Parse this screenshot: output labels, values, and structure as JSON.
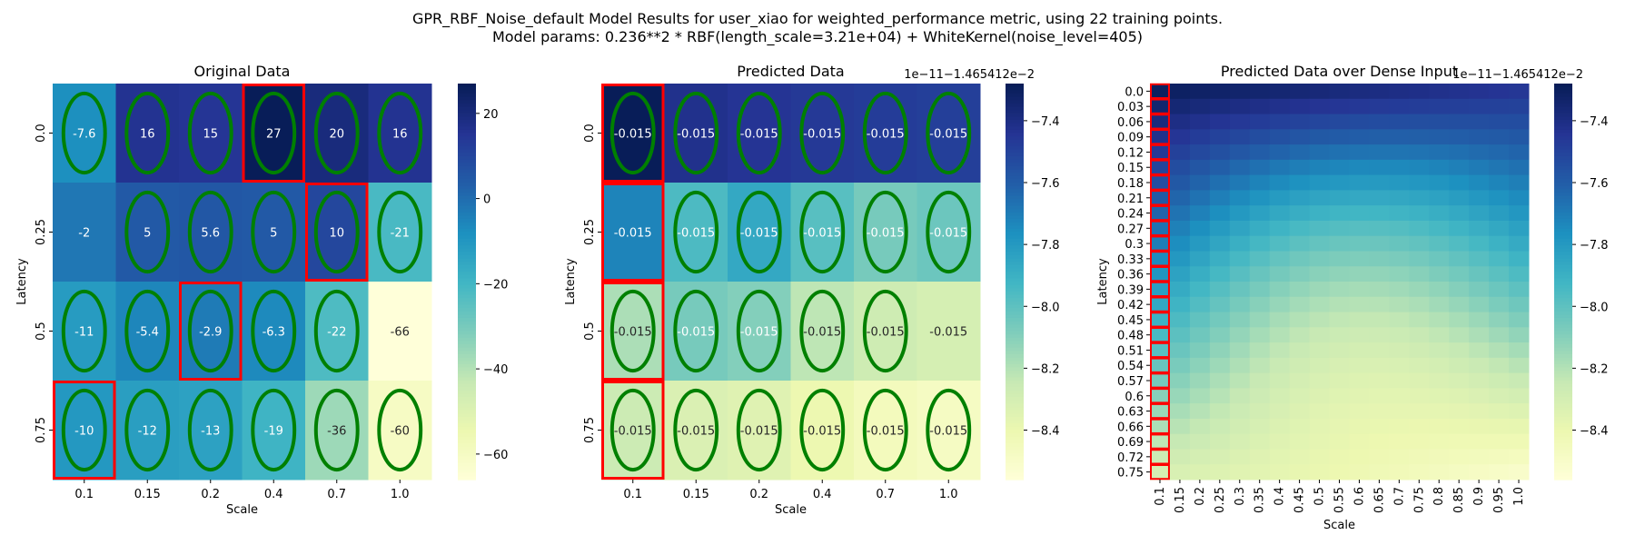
{
  "figure": {
    "title_line1": "GPR_RBF_Noise_default Model Results for user_xiao for weighted_performance metric, using 22 training points.",
    "title_line2": "Model params: 0.236**2 * RBF(length_scale=3.21e+04) + WhiteKernel(noise_level=405)"
  },
  "colors": {
    "colormap": "YlGnBu",
    "training_marker": "#008000",
    "highlight_box": "#ff0000",
    "annotation_text": "#ffffff"
  },
  "chart_data": [
    {
      "type": "heatmap",
      "title": "Original Data",
      "xlabel": "Scale",
      "ylabel": "Latency",
      "x_labels": [
        "0.1",
        "0.15",
        "0.2",
        "0.4",
        "0.7",
        "1.0"
      ],
      "y_labels": [
        "0.0",
        "0.25",
        "0.5",
        "0.75"
      ],
      "values": [
        [
          -7.6,
          16,
          15,
          27,
          20,
          16
        ],
        [
          -2,
          5,
          5.6,
          5,
          10,
          -21
        ],
        [
          -11,
          -5.4,
          -2.9,
          -6.3,
          -22,
          -66
        ],
        [
          -10,
          -12,
          -13,
          -19,
          -36,
          -60
        ]
      ],
      "annotations": [
        [
          "-7.6",
          "16",
          "15",
          "27",
          "20",
          "16"
        ],
        [
          "-2",
          "5",
          "5.6",
          "5",
          "10",
          "-21"
        ],
        [
          "-11",
          "-5.4",
          "-2.9",
          "-6.3",
          "-22",
          "-66"
        ],
        [
          "-10",
          "-12",
          "-13",
          "-19",
          "-36",
          "-60"
        ]
      ],
      "vmin": -66,
      "vmax": 27,
      "colorbar_ticks": [
        20,
        0,
        -20,
        -40,
        -60
      ],
      "colorbar_tick_labels": [
        "20",
        "0",
        "−20",
        "−40",
        "−60"
      ],
      "colorbar_offset_text": "",
      "training_points": [
        [
          0,
          0
        ],
        [
          0,
          1
        ],
        [
          0,
          2
        ],
        [
          0,
          3
        ],
        [
          0,
          4
        ],
        [
          0,
          5
        ],
        [
          1,
          1
        ],
        [
          1,
          2
        ],
        [
          1,
          3
        ],
        [
          1,
          4
        ],
        [
          1,
          5
        ],
        [
          2,
          0
        ],
        [
          2,
          1
        ],
        [
          2,
          2
        ],
        [
          2,
          3
        ],
        [
          2,
          4
        ],
        [
          3,
          0
        ],
        [
          3,
          1
        ],
        [
          3,
          2
        ],
        [
          3,
          3
        ],
        [
          3,
          4
        ],
        [
          3,
          5
        ]
      ],
      "highlighted_cells": [
        [
          0,
          3
        ],
        [
          1,
          4
        ],
        [
          2,
          2
        ],
        [
          3,
          0
        ]
      ]
    },
    {
      "type": "heatmap",
      "title": "Predicted Data",
      "xlabel": "Scale",
      "ylabel": "Latency",
      "x_labels": [
        "0.1",
        "0.15",
        "0.2",
        "0.4",
        "0.7",
        "1.0"
      ],
      "y_labels": [
        "0.0",
        "0.25",
        "0.5",
        "0.75"
      ],
      "values": [
        [
          -7.28,
          -7.42,
          -7.44,
          -7.46,
          -7.47,
          -7.48
        ],
        [
          -7.72,
          -7.95,
          -7.86,
          -7.98,
          -8.06,
          -8.03
        ],
        [
          -8.18,
          -8.06,
          -8.09,
          -8.22,
          -8.27,
          -8.3
        ],
        [
          -8.26,
          -8.32,
          -8.34,
          -8.4,
          -8.45,
          -8.47
        ]
      ],
      "annotations": [
        [
          "-0.015",
          "-0.015",
          "-0.015",
          "-0.015",
          "-0.015",
          "-0.015"
        ],
        [
          "-0.015",
          "-0.015",
          "-0.015",
          "-0.015",
          "-0.015",
          "-0.015"
        ],
        [
          "-0.015",
          "-0.015",
          "-0.015",
          "-0.015",
          "-0.015",
          "-0.015"
        ],
        [
          "-0.015",
          "-0.015",
          "-0.015",
          "-0.015",
          "-0.015",
          "-0.015"
        ]
      ],
      "vmin": -8.56,
      "vmax": -7.28,
      "colorbar_ticks": [
        -7.4,
        -7.6,
        -7.8,
        -8.0,
        -8.2,
        -8.4
      ],
      "colorbar_tick_labels": [
        "−7.4",
        "−7.6",
        "−7.8",
        "−8.0",
        "−8.2",
        "−8.4"
      ],
      "colorbar_offset_text": "1e−11−1.465412e−2",
      "training_points": [
        [
          0,
          0
        ],
        [
          0,
          1
        ],
        [
          0,
          2
        ],
        [
          0,
          3
        ],
        [
          0,
          4
        ],
        [
          0,
          5
        ],
        [
          1,
          1
        ],
        [
          1,
          2
        ],
        [
          1,
          3
        ],
        [
          1,
          4
        ],
        [
          1,
          5
        ],
        [
          2,
          0
        ],
        [
          2,
          1
        ],
        [
          2,
          2
        ],
        [
          2,
          3
        ],
        [
          2,
          4
        ],
        [
          3,
          0
        ],
        [
          3,
          1
        ],
        [
          3,
          2
        ],
        [
          3,
          3
        ],
        [
          3,
          4
        ],
        [
          3,
          5
        ]
      ],
      "highlighted_cells": [
        [
          0,
          0
        ],
        [
          1,
          0
        ],
        [
          2,
          0
        ],
        [
          3,
          0
        ]
      ]
    },
    {
      "type": "heatmap",
      "title": "Predicted Data over Dense Input",
      "xlabel": "Scale",
      "ylabel": "Latency",
      "x_labels": [
        "0.1",
        "0.15",
        "0.2",
        "0.25",
        "0.3",
        "0.35",
        "0.4",
        "0.45",
        "0.5",
        "0.55",
        "0.6",
        "0.65",
        "0.7",
        "0.75",
        "0.8",
        "0.85",
        "0.9",
        "0.95",
        "1.0"
      ],
      "y_labels": [
        "0.0",
        "0.03",
        "0.06",
        "0.09",
        "0.12",
        "0.15",
        "0.18",
        "0.21",
        "0.24",
        "0.27",
        "0.3",
        "0.33",
        "0.36",
        "0.39",
        "0.42",
        "0.45",
        "0.48",
        "0.51",
        "0.54",
        "0.57",
        "0.6",
        "0.63",
        "0.66",
        "0.69",
        "0.72",
        "0.75"
      ],
      "dense_corner_values": {
        "top_left": -7.3,
        "top_right": -7.45,
        "bottom_left": -8.3,
        "bottom_right": -8.5
      },
      "vmin": -8.56,
      "vmax": -7.28,
      "colorbar_ticks": [
        -7.4,
        -7.6,
        -7.8,
        -8.0,
        -8.2,
        -8.4
      ],
      "colorbar_tick_labels": [
        "−7.4",
        "−7.6",
        "−7.8",
        "−8.0",
        "−8.2",
        "−8.4"
      ],
      "colorbar_offset_text": "1e−11−1.465412e−2",
      "highlighted_column": 0
    }
  ]
}
